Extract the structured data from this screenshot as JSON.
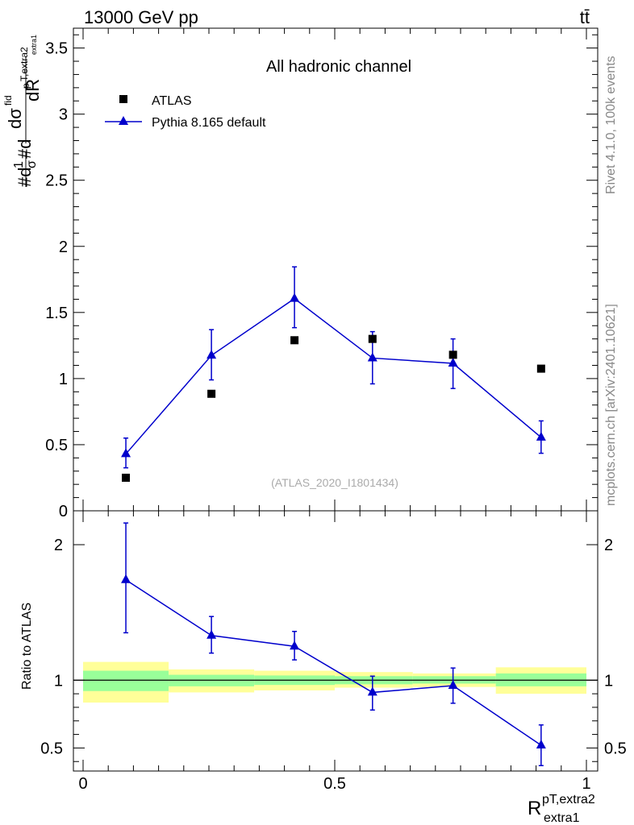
{
  "header": {
    "energy_label": "13000 GeV pp",
    "process_label": "tt̄"
  },
  "side_labels": {
    "rivet": "Rivet 4.1.0,  100k events",
    "source": "mcplots.cern.ch [arXiv:2401.10621]"
  },
  "chart_data": [
    {
      "type": "scatter",
      "panel": "main",
      "title": "All hadronic channel",
      "watermark": "(ATLAS_2020_I1801434)",
      "ylabel_parts": [
        "#d",
        "1",
        "σ",
        "#d",
        "dσ",
        "fid",
        "p",
        "T,extra2",
        "extra1",
        "dR"
      ],
      "xlim": [
        0,
        1
      ],
      "ylim": [
        0,
        3.65
      ],
      "yticks": [
        0,
        0.5,
        1,
        1.5,
        2,
        2.5,
        3,
        3.5
      ],
      "ytick_labels": [
        "0",
        "0.5",
        "1",
        "1.5",
        "2",
        "2.5",
        "3",
        "3.5"
      ],
      "legend": [
        {
          "name": "ATLAS",
          "marker": "square",
          "color": "#000000"
        },
        {
          "name": "Pythia 8.165 default",
          "marker": "triangle",
          "color": "#0000cc"
        }
      ],
      "series": [
        {
          "name": "ATLAS",
          "x": [
            0.085,
            0.255,
            0.42,
            0.575,
            0.735,
            0.91
          ],
          "y": [
            0.25,
            0.885,
            1.29,
            1.3,
            1.18,
            1.075
          ]
        },
        {
          "name": "Pythia 8.165 default",
          "x": [
            0.085,
            0.255,
            0.42,
            0.575,
            0.735,
            0.91
          ],
          "y": [
            0.43,
            1.175,
            1.605,
            1.155,
            1.115,
            0.555
          ],
          "err_low": [
            0.105,
            0.185,
            0.22,
            0.195,
            0.19,
            0.12
          ],
          "err_high": [
            0.12,
            0.195,
            0.24,
            0.2,
            0.185,
            0.125
          ]
        }
      ]
    },
    {
      "type": "scatter",
      "panel": "ratio",
      "ylabel": "Ratio to ATLAS",
      "xlabel_main": "R",
      "xlabel_sup": "pT,extra2",
      "xlabel_sub": "extra1",
      "xlim": [
        0,
        1
      ],
      "ylim": [
        0.33,
        2.25
      ],
      "yticks": [
        0.5,
        1,
        2
      ],
      "ytick_labels": [
        "0.5",
        "1",
        "2"
      ],
      "xticks": [
        0,
        0.5,
        1
      ],
      "xtick_labels": [
        "0",
        "0.5",
        "1"
      ],
      "bands": [
        {
          "x0": 0.0,
          "x1": 0.17,
          "yellow": [
            0.835,
            1.135
          ],
          "green": [
            0.92,
            1.07
          ]
        },
        {
          "x0": 0.17,
          "x1": 0.34,
          "yellow": [
            0.91,
            1.08
          ],
          "green": [
            0.955,
            1.04
          ]
        },
        {
          "x0": 0.34,
          "x1": 0.5,
          "yellow": [
            0.925,
            1.07
          ],
          "green": [
            0.965,
            1.035
          ]
        },
        {
          "x0": 0.5,
          "x1": 0.655,
          "yellow": [
            0.945,
            1.06
          ],
          "green": [
            0.97,
            1.03
          ]
        },
        {
          "x0": 0.655,
          "x1": 0.82,
          "yellow": [
            0.95,
            1.05
          ],
          "green": [
            0.975,
            1.03
          ]
        },
        {
          "x0": 0.82,
          "x1": 1.0,
          "yellow": [
            0.9,
            1.095
          ],
          "green": [
            0.955,
            1.05
          ]
        }
      ],
      "series": [
        {
          "name": "Pythia 8.165 default",
          "x": [
            0.085,
            0.255,
            0.42,
            0.575,
            0.735,
            0.91
          ],
          "y": [
            1.74,
            1.33,
            1.25,
            0.91,
            0.96,
            0.52
          ],
          "err_low": [
            0.39,
            0.13,
            0.1,
            0.13,
            0.13,
            0.15
          ],
          "err_high": [
            0.42,
            0.14,
            0.11,
            0.12,
            0.13,
            0.15
          ]
        }
      ]
    }
  ]
}
